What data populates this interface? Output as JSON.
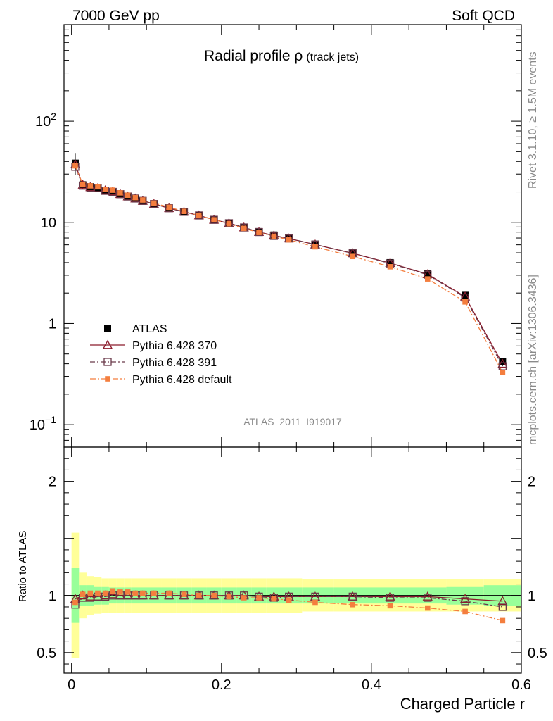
{
  "header": {
    "left": "7000 GeV pp",
    "right": "Soft QCD"
  },
  "side": {
    "rivet": "Rivet 3.1.10, ≥ 1.5M events",
    "mcplots": "mcplots.cern.ch [arXiv:1306.3436]"
  },
  "chart_data": {
    "type": "line",
    "title_main": "Radial profile ρ",
    "title_sub": "(track jets)",
    "analysis_label": "ATLAS_2011_I919017",
    "xlabel": "Charged Particle r",
    "ylabel": "",
    "ratio_ylabel": "Ratio to ATLAS",
    "xlim": [
      -0.01,
      0.6
    ],
    "ylim": [
      0.06,
      900
    ],
    "ratio_ylim": [
      0.32,
      2.3
    ],
    "xticks": [
      0,
      0.2,
      0.4,
      0.6
    ],
    "xtick_labels": [
      "0",
      "0.2",
      "0.4",
      "0.6"
    ],
    "yticks_main": [
      {
        "value": 0.1,
        "base": "10",
        "exp": "−1"
      },
      {
        "value": 1,
        "base": "1",
        "exp": ""
      },
      {
        "value": 10,
        "base": "10",
        "exp": ""
      },
      {
        "value": 100,
        "base": "10",
        "exp": "2"
      }
    ],
    "yticks_ratio": [
      {
        "value": 0.5,
        "label": "0.5"
      },
      {
        "value": 1,
        "label": "1"
      },
      {
        "value": 2,
        "label": "2"
      }
    ],
    "x": [
      0.005,
      0.015,
      0.025,
      0.035,
      0.045,
      0.055,
      0.065,
      0.075,
      0.085,
      0.095,
      0.11,
      0.13,
      0.15,
      0.17,
      0.19,
      0.21,
      0.23,
      0.25,
      0.27,
      0.29,
      0.325,
      0.375,
      0.425,
      0.475,
      0.525,
      0.575
    ],
    "series": [
      {
        "name": "ATLAS",
        "color": "#000000",
        "marker": "filled-square",
        "values": [
          38.5,
          23.5,
          22.5,
          22.0,
          20.7,
          20.0,
          19.0,
          18.0,
          17.2,
          16.3,
          15.2,
          13.8,
          12.7,
          11.7,
          10.6,
          9.8,
          8.9,
          8.1,
          7.5,
          7.0,
          6.1,
          5.0,
          4.0,
          3.1,
          1.9,
          0.42
        ],
        "err_inner": [
          0.24,
          0.09,
          0.09,
          0.08,
          0.08,
          0.07,
          0.07,
          0.07,
          0.07,
          0.07,
          0.07,
          0.07,
          0.07,
          0.07,
          0.07,
          0.07,
          0.07,
          0.07,
          0.07,
          0.07,
          0.07,
          0.07,
          0.07,
          0.07,
          0.08,
          0.09
        ],
        "err_outer": [
          0.55,
          0.2,
          0.17,
          0.16,
          0.15,
          0.15,
          0.15,
          0.15,
          0.15,
          0.15,
          0.15,
          0.15,
          0.15,
          0.15,
          0.15,
          0.15,
          0.15,
          0.15,
          0.15,
          0.15,
          0.14,
          0.14,
          0.14,
          0.14,
          0.14,
          0.14
        ]
      },
      {
        "name": "Pythia 6.428 370",
        "color": "#8b1a2b",
        "marker": "open-triangle",
        "dash": "",
        "ratio": [
          0.97,
          1.0,
          0.99,
          0.99,
          1.0,
          1.01,
          1.0,
          1.0,
          1.0,
          1.0,
          1.0,
          1.0,
          1.0,
          1.0,
          1.0,
          1.0,
          1.0,
          0.99,
          0.99,
          0.99,
          0.99,
          0.99,
          0.99,
          0.99,
          0.97,
          0.95
        ]
      },
      {
        "name": "Pythia 6.428 391",
        "color": "#6b3a4a",
        "marker": "open-square",
        "dash": "7,3,2,3",
        "ratio": [
          0.92,
          0.98,
          0.98,
          0.99,
          0.99,
          1.0,
          1.0,
          1.0,
          1.0,
          1.0,
          1.0,
          1.0,
          1.0,
          1.0,
          1.0,
          1.0,
          1.0,
          0.99,
          0.98,
          0.99,
          0.99,
          0.99,
          0.98,
          0.98,
          0.95,
          0.9
        ]
      },
      {
        "name": "Pythia 6.428 default",
        "color": "#f47e3e",
        "marker": "filled-small-square",
        "dash": "8,3,2,3",
        "ratio": [
          0.94,
          1.01,
          1.02,
          1.02,
          1.02,
          1.04,
          1.03,
          1.03,
          1.02,
          1.02,
          1.02,
          1.02,
          1.01,
          1.0,
          1.0,
          0.99,
          0.98,
          0.98,
          0.97,
          0.96,
          0.94,
          0.92,
          0.91,
          0.89,
          0.86,
          0.78
        ]
      }
    ],
    "legend_position": "lower-left"
  }
}
